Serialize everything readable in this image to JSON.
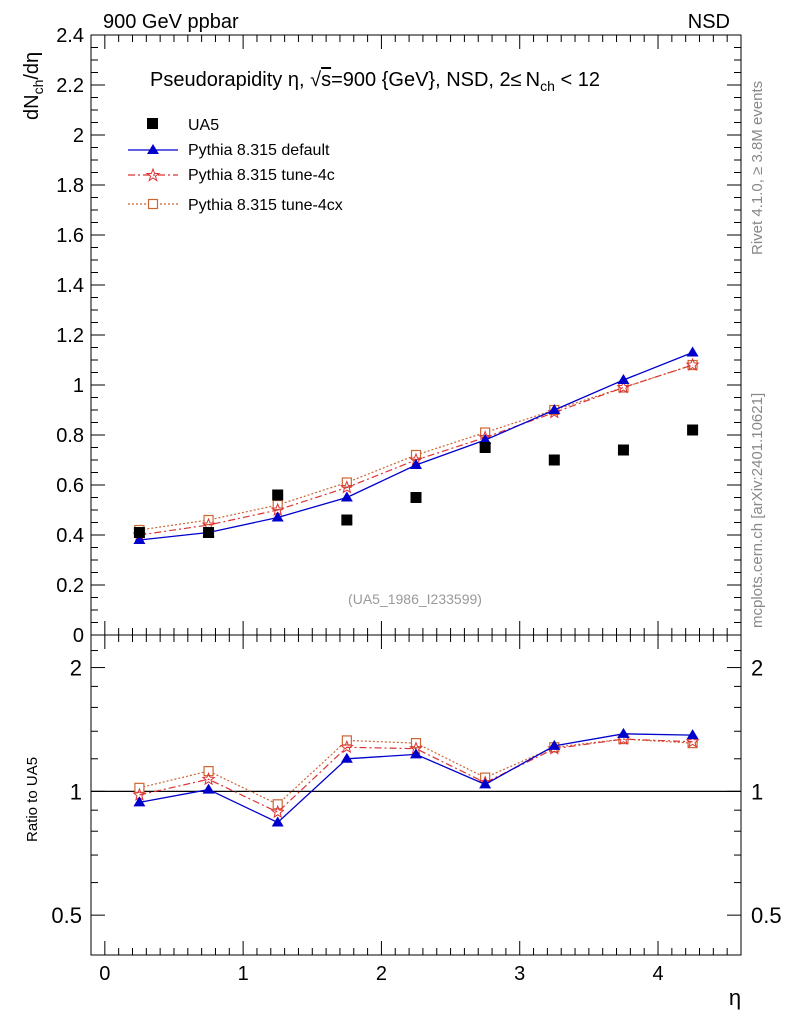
{
  "header": {
    "left": "900 GeV ppbar",
    "right": "NSD"
  },
  "side_texts": {
    "rivet": "Rivet 4.1.0, ≥ 3.8M events",
    "mcplots": "mcplots.cern.ch [arXiv:2401.10621]"
  },
  "colors": {
    "data": "#000000",
    "default": "#0000cc",
    "tune4c": "#dd3333",
    "tune4cx": "#cc6633",
    "ref_line": "#000000"
  },
  "chart_data": [
    {
      "type": "line",
      "panel": "main",
      "title": {
        "part1": "Pseudorapidity ",
        "eta": "η",
        "part2": ", ",
        "sqrt": "√",
        "s": "s",
        "part3": "=900 {GeV}, NSD, 2",
        "le": "≤",
        "n": "N",
        "sub": "ch",
        "part4": " < 12"
      },
      "ylabel": {
        "main": "dN",
        "sub": "ch",
        "tail": "/dη"
      },
      "xlim": [
        -0.1,
        4.6
      ],
      "ylim": [
        0,
        2.4
      ],
      "yticks": [
        "0",
        "0.2",
        "0.4",
        "0.6",
        "0.8",
        "1",
        "1.2",
        "1.4",
        "1.6",
        "1.8",
        "2",
        "2.2",
        "2.4"
      ],
      "ytick_values": [
        0,
        0.2,
        0.4,
        0.6,
        0.8,
        1.0,
        1.2,
        1.4,
        1.6,
        1.8,
        2.0,
        2.2,
        2.4
      ],
      "x": [
        0.25,
        0.75,
        1.25,
        1.75,
        2.25,
        2.75,
        3.25,
        3.75,
        4.25
      ],
      "series": [
        {
          "name": "UA5",
          "marker": "square",
          "values": [
            0.41,
            0.41,
            0.56,
            0.46,
            0.55,
            0.75,
            0.7,
            0.74,
            0.82
          ]
        },
        {
          "name": "Pythia 8.315 default",
          "marker": "triangle",
          "values": [
            0.38,
            0.41,
            0.47,
            0.55,
            0.68,
            0.78,
            0.9,
            1.02,
            1.13
          ]
        },
        {
          "name": "Pythia 8.315 tune-4c",
          "marker": "star",
          "values": [
            0.4,
            0.44,
            0.5,
            0.59,
            0.7,
            0.79,
            0.89,
            0.99,
            1.08
          ]
        },
        {
          "name": "Pythia 8.315 tune-4cx",
          "marker": "open-square",
          "values": [
            0.42,
            0.46,
            0.52,
            0.61,
            0.72,
            0.81,
            0.9,
            0.99,
            1.08
          ]
        }
      ],
      "legend": [
        "UA5",
        "Pythia 8.315 default",
        "Pythia 8.315 tune-4c",
        "Pythia 8.315 tune-4cx"
      ],
      "annotation": "(UA5_1986_I233599)"
    },
    {
      "type": "line",
      "panel": "ratio",
      "yscale": "log",
      "ylabel": "Ratio to UA5",
      "xlabel": "η",
      "xlim": [
        -0.1,
        4.6
      ],
      "ylim": [
        0.4,
        2.4
      ],
      "xticks": [
        "0",
        "1",
        "2",
        "3",
        "4"
      ],
      "xtick_values": [
        0,
        1,
        2,
        3,
        4
      ],
      "yticks": [
        "0.5",
        "1",
        "2"
      ],
      "ytick_values": [
        0.5,
        1,
        2
      ],
      "x": [
        0.25,
        0.75,
        1.25,
        1.75,
        2.25,
        2.75,
        3.25,
        3.75,
        4.25
      ],
      "series": [
        {
          "name": "Pythia 8.315 default",
          "values": [
            0.94,
            1.01,
            0.84,
            1.2,
            1.23,
            1.04,
            1.29,
            1.38,
            1.37
          ]
        },
        {
          "name": "Pythia 8.315 tune-4c",
          "values": [
            0.98,
            1.07,
            0.89,
            1.28,
            1.27,
            1.05,
            1.27,
            1.34,
            1.32
          ]
        },
        {
          "name": "Pythia 8.315 tune-4cx",
          "values": [
            1.02,
            1.12,
            0.93,
            1.33,
            1.31,
            1.08,
            1.28,
            1.34,
            1.31
          ]
        }
      ],
      "reference_line": 1
    }
  ]
}
